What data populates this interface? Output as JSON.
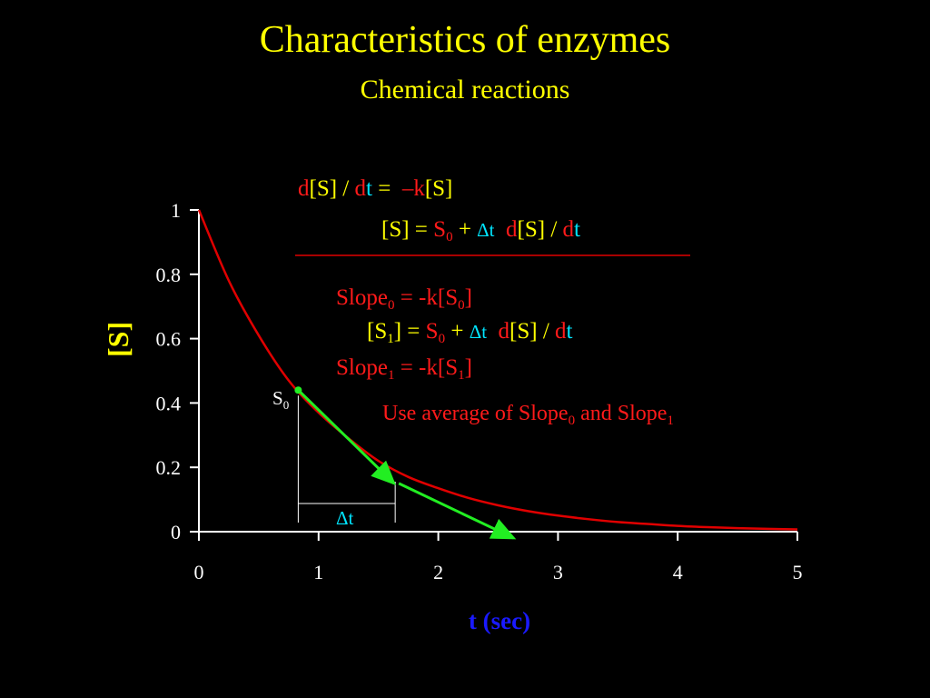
{
  "slide": {
    "title": "Characteristics of enzymes",
    "subtitle": "Chemical reactions"
  },
  "chart_data": {
    "type": "line",
    "xlabel": "t (sec)",
    "ylabel": "[S]",
    "xlim": [
      0,
      5
    ],
    "ylim": [
      0,
      1
    ],
    "x_ticks": [
      "0",
      "1",
      "2",
      "3",
      "4",
      "5"
    ],
    "y_ticks": [
      "0",
      "0.2",
      "0.4",
      "0.6",
      "0.8",
      "1"
    ],
    "series": [
      {
        "color": "#e00000",
        "x": [
          0,
          0.25,
          0.5,
          0.75,
          1.0,
          1.25,
          1.5,
          1.75,
          2.0,
          2.25,
          2.5,
          2.75,
          3.0,
          3.25,
          3.5,
          3.75,
          4.0,
          4.25,
          4.5,
          4.75,
          5.0
        ],
        "y": [
          1.0,
          0.78,
          0.61,
          0.47,
          0.37,
          0.29,
          0.22,
          0.17,
          0.135,
          0.105,
          0.082,
          0.064,
          0.05,
          0.039,
          0.03,
          0.024,
          0.018,
          0.014,
          0.011,
          0.009,
          0.007
        ]
      }
    ],
    "tangents": [
      {
        "x0": 0.83,
        "y0": 0.44,
        "x1": 1.63,
        "y1": 0.15
      },
      {
        "x0": 1.67,
        "y0": 0.15,
        "x1": 2.63,
        "y1": -0.02
      }
    ],
    "annotations": {
      "s0_label": "S",
      "s0_sub": "0",
      "dt_label": "Δt",
      "s0_x": 0.83,
      "s0_y": 0.44,
      "dt_end_x": 1.64
    }
  },
  "equations": {
    "eq1": {
      "d1": "d",
      "s1": "[S] / ",
      "d2": "d",
      "t": "t",
      "rhs_eq": " =  ",
      "minus_k": "–k",
      "s2": "[S]"
    },
    "eq2": {
      "s": "[S] = ",
      "s0": "S",
      "sub0": "0",
      "plus": " + ",
      "dt": "Δt",
      "d1": "d",
      "s1": "[S] / ",
      "d2": "d",
      "t": "t"
    },
    "eq3": {
      "slope": "Slope",
      "sub": "0",
      "rest": " = -k[S",
      "sub2": "0",
      "end": "]"
    },
    "eq4": {
      "s1a": "[S",
      "sub": "1",
      "s1b": "] = ",
      "s0": "S",
      "sub0": "0",
      "plus": " + ",
      "dt": "Δt",
      "d1": "d",
      "mid": "[S] / ",
      "d2": "d",
      "t": "t"
    },
    "eq5": {
      "slope": "Slope",
      "sub": "1",
      "rest": " = -k[S",
      "sub2": "1",
      "end": "]"
    },
    "eq6": {
      "text": "Use average of Slope",
      "sub0": "0",
      "and": " and Slope",
      "sub1": "1"
    }
  }
}
